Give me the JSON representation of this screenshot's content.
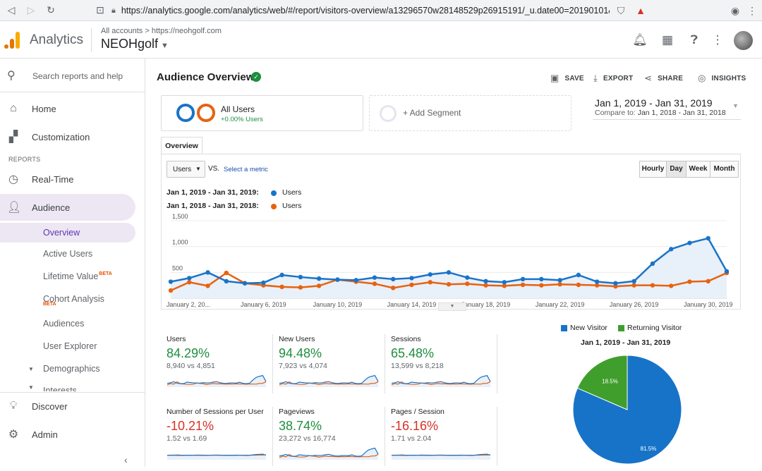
{
  "browser": {
    "url": "https://analytics.google.com/analytics/web/#/report/visitors-overview/a13296570w28148529p26915191/_u.date00=20190101&_..."
  },
  "header": {
    "app_name": "Analytics",
    "breadcrumb": "All accounts > https://neohgolf.com",
    "property": "NEOHgolf"
  },
  "sidebar": {
    "search_placeholder": "Search reports and help",
    "home": "Home",
    "customization": "Customization",
    "reports_label": "REPORTS",
    "realtime": "Real-Time",
    "audience": "Audience",
    "sub": {
      "overview": "Overview",
      "active_users": "Active Users",
      "lifetime_value": "Lifetime Value",
      "cohort_analysis": "Cohort Analysis",
      "audiences": "Audiences",
      "user_explorer": "User Explorer",
      "demographics": "Demographics",
      "interests": "Interests"
    },
    "beta": "BETA",
    "discover": "Discover",
    "admin": "Admin"
  },
  "toolbar": {
    "title": "Audience Overview",
    "save": "SAVE",
    "export": "EXPORT",
    "share": "SHARE",
    "insights": "INSIGHTS"
  },
  "segment": {
    "name": "All Users",
    "sub": "+0.00% Users",
    "add": "+ Add Segment"
  },
  "date": {
    "range": "Jan 1, 2019 - Jan 31, 2019",
    "compare_label": "Compare to:",
    "compare_range": "Jan 1, 2018 - Jan 31, 2018"
  },
  "tabs": {
    "overview": "Overview"
  },
  "chart_controls": {
    "metric": "Users",
    "vs": "VS.",
    "select_metric": "Select a metric",
    "granularity": [
      "Hourly",
      "Day",
      "Week",
      "Month"
    ],
    "selected": "Day"
  },
  "colors": {
    "current": "#1a73c8",
    "previous": "#e8620e",
    "new_visitor": "#1773c8",
    "returning_visitor": "#3f9e2c",
    "positive": "#1e8e3e",
    "negative": "#d93025"
  },
  "chart_data": {
    "type": "line",
    "series": [
      {
        "name": "Users",
        "range": "Jan 1, 2019 - Jan 31, 2019:",
        "values": [
          320,
          390,
          500,
          330,
          290,
          300,
          450,
          410,
          380,
          360,
          350,
          400,
          370,
          390,
          460,
          500,
          400,
          330,
          310,
          370,
          370,
          350,
          450,
          320,
          290,
          330,
          670,
          950,
          1070,
          1160,
          520
        ]
      },
      {
        "name": "Users",
        "range": "Jan 1, 2018 - Jan 31, 2018:",
        "values": [
          150,
          310,
          240,
          490,
          290,
          250,
          220,
          210,
          240,
          360,
          320,
          280,
          200,
          260,
          310,
          270,
          280,
          250,
          240,
          260,
          250,
          270,
          260,
          250,
          230,
          250,
          250,
          240,
          320,
          330,
          490
        ]
      }
    ],
    "x_ticks": [
      "January 2, 20...",
      "January 6, 2019",
      "January 10, 2019",
      "January 14, 2019",
      "January 18, 2019",
      "January 22, 2019",
      "January 26, 2019",
      "January 30, 2019"
    ],
    "y_ticks": [
      "1,500",
      "1,000",
      "500"
    ],
    "ylim": [
      0,
      1500
    ],
    "grid": true
  },
  "metrics": [
    {
      "name": "Users",
      "pct": "84.29%",
      "vs": "8,940 vs 4,851",
      "trend": "up"
    },
    {
      "name": "New Users",
      "pct": "94.48%",
      "vs": "7,923 vs 4,074",
      "trend": "up"
    },
    {
      "name": "Sessions",
      "pct": "65.48%",
      "vs": "13,599 vs 8,218",
      "trend": "up"
    },
    {
      "name": "Number of Sessions per User",
      "pct": "-10.21%",
      "vs": "1.52 vs 1.69",
      "trend": "down"
    },
    {
      "name": "Pageviews",
      "pct": "38.74%",
      "vs": "23,272 vs 16,774",
      "trend": "up"
    },
    {
      "name": "Pages / Session",
      "pct": "-16.16%",
      "vs": "1.71 vs 2.04",
      "trend": "down"
    }
  ],
  "pie": {
    "title": "Jan 1, 2019 - Jan 31, 2019",
    "slices": [
      {
        "name": "New Visitor",
        "value": 81.5,
        "label": "81.5%"
      },
      {
        "name": "Returning Visitor",
        "value": 18.5,
        "label": "18.5%"
      }
    ]
  }
}
